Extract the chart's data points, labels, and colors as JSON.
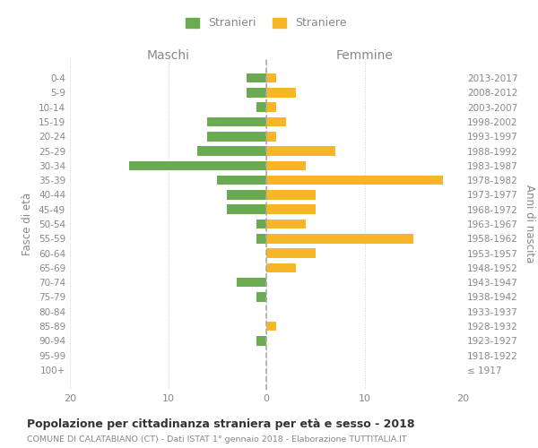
{
  "age_groups": [
    "100+",
    "95-99",
    "90-94",
    "85-89",
    "80-84",
    "75-79",
    "70-74",
    "65-69",
    "60-64",
    "55-59",
    "50-54",
    "45-49",
    "40-44",
    "35-39",
    "30-34",
    "25-29",
    "20-24",
    "15-19",
    "10-14",
    "5-9",
    "0-4"
  ],
  "birth_years": [
    "≤ 1917",
    "1918-1922",
    "1923-1927",
    "1928-1932",
    "1933-1937",
    "1938-1942",
    "1943-1947",
    "1948-1952",
    "1953-1957",
    "1958-1962",
    "1963-1967",
    "1968-1972",
    "1973-1977",
    "1978-1982",
    "1983-1987",
    "1988-1992",
    "1993-1997",
    "1998-2002",
    "2003-2007",
    "2008-2012",
    "2013-2017"
  ],
  "maschi": [
    0,
    0,
    1,
    0,
    0,
    1,
    3,
    0,
    0,
    1,
    1,
    4,
    4,
    5,
    14,
    7,
    6,
    6,
    1,
    2,
    2
  ],
  "femmine": [
    0,
    0,
    0,
    1,
    0,
    0,
    0,
    3,
    5,
    15,
    4,
    5,
    5,
    18,
    4,
    7,
    1,
    2,
    1,
    3,
    1
  ],
  "color_maschi": "#6aaa50",
  "color_femmine": "#f6b626",
  "xlim_min": -20,
  "xlim_max": 20,
  "header_left": "Maschi",
  "header_right": "Femmine",
  "ylabel_left": "Fasce di età",
  "ylabel_right": "Anni di nascita",
  "title": "Popolazione per cittadinanza straniera per età e sesso - 2018",
  "subtitle": "COMUNE DI CALATABIANO (CT) - Dati ISTAT 1° gennaio 2018 - Elaborazione TUTTITALIA.IT",
  "legend_maschi": "Stranieri",
  "legend_femmine": "Straniere",
  "bg_color": "#ffffff",
  "grid_color": "#d0d0d0",
  "text_color": "#888888",
  "title_color": "#333333"
}
